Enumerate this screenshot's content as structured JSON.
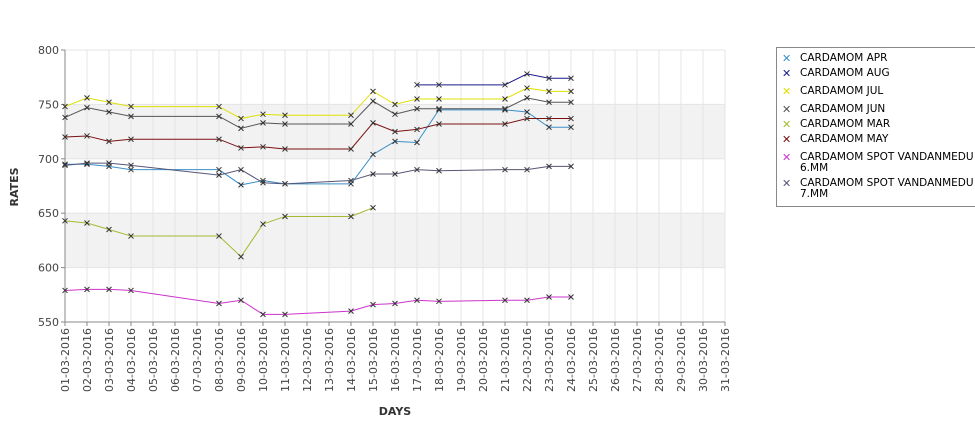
{
  "chart_data": {
    "type": "line",
    "xlabel": "DAYS",
    "ylabel": "RATES",
    "ylim": [
      550,
      800
    ],
    "yticks": [
      550,
      600,
      650,
      700,
      750,
      800
    ],
    "grid": true,
    "legend_position": "right",
    "categories": [
      "01-03-2016",
      "02-03-2016",
      "03-03-2016",
      "04-03-2016",
      "05-03-2016",
      "06-03-2016",
      "07-03-2016",
      "08-03-2016",
      "09-03-2016",
      "10-03-2016",
      "11-03-2016",
      "12-03-2016",
      "13-03-2016",
      "14-03-2016",
      "15-03-2016",
      "16-03-2016",
      "17-03-2016",
      "18-03-2016",
      "19-03-2016",
      "20-03-2016",
      "21-03-2016",
      "22-03-2016",
      "23-03-2016",
      "24-03-2016",
      "25-03-2016",
      "26-03-2016",
      "27-03-2016",
      "28-03-2016",
      "29-03-2016",
      "30-03-2016",
      "31-03-2016"
    ],
    "series": [
      {
        "name": "CARDAMOM APR",
        "color": "#3a8fc8",
        "points": [
          [
            "01-03-2016",
            695
          ],
          [
            "02-03-2016",
            695
          ],
          [
            "03-03-2016",
            693
          ],
          [
            "04-03-2016",
            690
          ],
          [
            "08-03-2016",
            690
          ],
          [
            "09-03-2016",
            676
          ],
          [
            "10-03-2016",
            680
          ],
          [
            "11-03-2016",
            677
          ],
          [
            "14-03-2016",
            677
          ],
          [
            "15-03-2016",
            704
          ],
          [
            "16-03-2016",
            716
          ],
          [
            "17-03-2016",
            715
          ],
          [
            "18-03-2016",
            745
          ],
          [
            "21-03-2016",
            745
          ],
          [
            "22-03-2016",
            743
          ],
          [
            "23-03-2016",
            729
          ],
          [
            "24-03-2016",
            729
          ]
        ]
      },
      {
        "name": "CARDAMOM AUG",
        "color": "#1a1a8c",
        "points": [
          [
            "17-03-2016",
            768
          ],
          [
            "18-03-2016",
            768
          ],
          [
            "21-03-2016",
            768
          ],
          [
            "22-03-2016",
            778
          ],
          [
            "23-03-2016",
            774
          ],
          [
            "24-03-2016",
            774
          ]
        ]
      },
      {
        "name": "CARDAMOM JUL",
        "color": "#e0e000",
        "points": [
          [
            "01-03-2016",
            748
          ],
          [
            "02-03-2016",
            756
          ],
          [
            "03-03-2016",
            752
          ],
          [
            "04-03-2016",
            748
          ],
          [
            "08-03-2016",
            748
          ],
          [
            "09-03-2016",
            737
          ],
          [
            "10-03-2016",
            741
          ],
          [
            "11-03-2016",
            740
          ],
          [
            "14-03-2016",
            740
          ],
          [
            "15-03-2016",
            762
          ],
          [
            "16-03-2016",
            750
          ],
          [
            "17-03-2016",
            755
          ],
          [
            "18-03-2016",
            755
          ],
          [
            "21-03-2016",
            755
          ],
          [
            "22-03-2016",
            765
          ],
          [
            "23-03-2016",
            762
          ],
          [
            "24-03-2016",
            762
          ]
        ]
      },
      {
        "name": "CARDAMOM JUN",
        "color": "#555555",
        "points": [
          [
            "01-03-2016",
            738
          ],
          [
            "02-03-2016",
            747
          ],
          [
            "03-03-2016",
            743
          ],
          [
            "04-03-2016",
            739
          ],
          [
            "08-03-2016",
            739
          ],
          [
            "09-03-2016",
            728
          ],
          [
            "10-03-2016",
            733
          ],
          [
            "11-03-2016",
            732
          ],
          [
            "14-03-2016",
            732
          ],
          [
            "15-03-2016",
            753
          ],
          [
            "16-03-2016",
            741
          ],
          [
            "17-03-2016",
            746
          ],
          [
            "18-03-2016",
            746
          ],
          [
            "21-03-2016",
            746
          ],
          [
            "22-03-2016",
            756
          ],
          [
            "23-03-2016",
            752
          ],
          [
            "24-03-2016",
            752
          ]
        ]
      },
      {
        "name": "CARDAMOM MAR",
        "color": "#a8b832",
        "points": [
          [
            "01-03-2016",
            643
          ],
          [
            "02-03-2016",
            641
          ],
          [
            "03-03-2016",
            635
          ],
          [
            "04-03-2016",
            629
          ],
          [
            "08-03-2016",
            629
          ],
          [
            "09-03-2016",
            610
          ],
          [
            "10-03-2016",
            640
          ],
          [
            "11-03-2016",
            647
          ],
          [
            "14-03-2016",
            647
          ],
          [
            "15-03-2016",
            655
          ]
        ]
      },
      {
        "name": "CARDAMOM MAY",
        "color": "#7a1010",
        "points": [
          [
            "01-03-2016",
            720
          ],
          [
            "02-03-2016",
            721
          ],
          [
            "03-03-2016",
            716
          ],
          [
            "04-03-2016",
            718
          ],
          [
            "08-03-2016",
            718
          ],
          [
            "09-03-2016",
            710
          ],
          [
            "10-03-2016",
            711
          ],
          [
            "11-03-2016",
            709
          ],
          [
            "14-03-2016",
            709
          ],
          [
            "15-03-2016",
            733
          ],
          [
            "16-03-2016",
            725
          ],
          [
            "17-03-2016",
            727
          ],
          [
            "18-03-2016",
            732
          ],
          [
            "21-03-2016",
            732
          ],
          [
            "22-03-2016",
            737
          ],
          [
            "23-03-2016",
            737
          ],
          [
            "24-03-2016",
            737
          ]
        ]
      },
      {
        "name": "CARDAMOM SPOT VANDANMEDU 6.MM",
        "color": "#cc33cc",
        "points": [
          [
            "01-03-2016",
            579
          ],
          [
            "02-03-2016",
            580
          ],
          [
            "03-03-2016",
            580
          ],
          [
            "04-03-2016",
            579
          ],
          [
            "08-03-2016",
            567
          ],
          [
            "09-03-2016",
            570
          ],
          [
            "10-03-2016",
            557
          ],
          [
            "11-03-2016",
            557
          ],
          [
            "14-03-2016",
            560
          ],
          [
            "15-03-2016",
            566
          ],
          [
            "16-03-2016",
            567
          ],
          [
            "17-03-2016",
            570
          ],
          [
            "18-03-2016",
            569
          ],
          [
            "21-03-2016",
            570
          ],
          [
            "22-03-2016",
            570
          ],
          [
            "23-03-2016",
            573
          ],
          [
            "24-03-2016",
            573
          ]
        ]
      },
      {
        "name": "CARDAMOM SPOT VANDANMEDU 7.MM",
        "color": "#555577",
        "points": [
          [
            "01-03-2016",
            694
          ],
          [
            "02-03-2016",
            696
          ],
          [
            "03-03-2016",
            696
          ],
          [
            "04-03-2016",
            694
          ],
          [
            "08-03-2016",
            685
          ],
          [
            "09-03-2016",
            690
          ],
          [
            "10-03-2016",
            678
          ],
          [
            "11-03-2016",
            677
          ],
          [
            "14-03-2016",
            680
          ],
          [
            "15-03-2016",
            686
          ],
          [
            "16-03-2016",
            686
          ],
          [
            "17-03-2016",
            690
          ],
          [
            "18-03-2016",
            689
          ],
          [
            "21-03-2016",
            690
          ],
          [
            "22-03-2016",
            690
          ],
          [
            "23-03-2016",
            693
          ],
          [
            "24-03-2016",
            693
          ]
        ]
      }
    ]
  },
  "legend": {
    "items": [
      {
        "line1": "CARDAMOM APR",
        "line2": ""
      },
      {
        "line1": "CARDAMOM AUG",
        "line2": ""
      },
      {
        "line1": "CARDAMOM JUL",
        "line2": ""
      },
      {
        "line1": "CARDAMOM JUN",
        "line2": ""
      },
      {
        "line1": "CARDAMOM MAR",
        "line2": ""
      },
      {
        "line1": "CARDAMOM MAY",
        "line2": ""
      },
      {
        "line1": "CARDAMOM SPOT VANDANMEDU",
        "line2": "6.MM"
      },
      {
        "line1": "CARDAMOM SPOT VANDANMEDU",
        "line2": "7.MM"
      }
    ]
  }
}
